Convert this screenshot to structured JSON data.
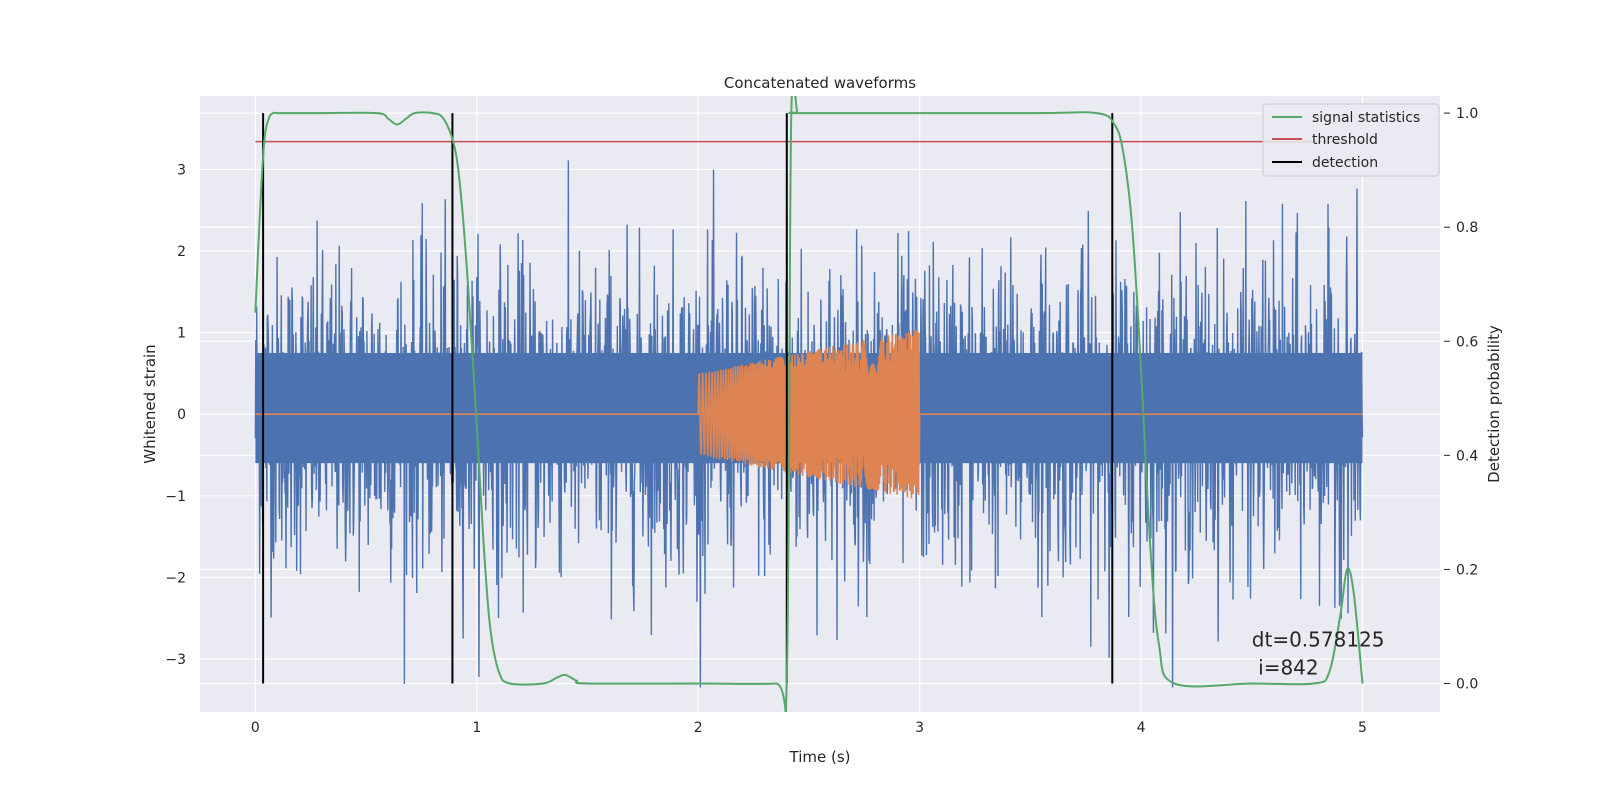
{
  "chart_data": {
    "type": "line",
    "title": "Concatenated waveforms",
    "xlabel": "Time (s)",
    "ylabel": "Whitened strain",
    "y2label": "Detection probability",
    "xlim": [
      -0.25,
      5.35
    ],
    "ylim": [
      -3.65,
      3.9
    ],
    "y2lim": [
      -0.05,
      1.03
    ],
    "xticks": [
      0,
      1,
      2,
      3,
      4,
      5
    ],
    "xtick_labels": [
      "0",
      "1",
      "2",
      "3",
      "4",
      "5"
    ],
    "yticks": [
      -3,
      -2,
      -1,
      0,
      1,
      2,
      3
    ],
    "ytick_labels": [
      "−3",
      "−2",
      "−1",
      "0",
      "1",
      "2",
      "3"
    ],
    "y2ticks": [
      0.0,
      0.2,
      0.4,
      0.6,
      0.8,
      1.0
    ],
    "y2tick_labels": [
      "0.0",
      "0.2",
      "0.4",
      "0.6",
      "0.8",
      "1.0"
    ],
    "grid": true,
    "legend_position": "top-right",
    "series": [
      {
        "kind": "noise",
        "axis": "left",
        "color": "#4c72b0",
        "x_range": [
          0,
          5
        ],
        "typical_min": -1.6,
        "typical_max": 1.6,
        "peak_max": 3.55,
        "peak_min": -3.35
      },
      {
        "kind": "chirp",
        "axis": "left",
        "color": "#dd8452",
        "baseline": 0,
        "x_range": [
          0,
          5
        ],
        "chirp_start": 2.0,
        "chirp_end": 3.0,
        "amplitude_start": 0.5,
        "amplitude_end": 1.05
      },
      {
        "name": "signal statistics",
        "axis": "right",
        "color": "#55a868",
        "x": [
          0,
          0.02,
          0.04,
          0.06,
          0.08,
          0.1,
          0.15,
          0.3,
          0.55,
          0.6,
          0.64,
          0.68,
          0.72,
          0.8,
          0.85,
          0.9,
          0.93,
          0.96,
          1.0,
          1.03,
          1.06,
          1.1,
          1.15,
          1.3,
          1.36,
          1.4,
          1.45,
          1.5,
          2.0,
          2.35,
          2.4,
          2.42,
          2.45,
          2.5,
          3.5,
          3.8,
          3.88,
          3.92,
          3.96,
          4.0,
          4.04,
          4.08,
          4.15,
          4.5,
          4.78,
          4.85,
          4.9,
          4.93,
          4.96,
          5.0
        ],
        "y": [
          0.65,
          0.82,
          0.95,
          0.99,
          1.0,
          1.0,
          1.0,
          1.0,
          1.0,
          0.99,
          0.98,
          0.99,
          1.0,
          1.0,
          0.99,
          0.94,
          0.85,
          0.7,
          0.45,
          0.25,
          0.1,
          0.02,
          0.0,
          0.0,
          0.01,
          0.015,
          0.005,
          0.0,
          0.0,
          0.0,
          0.01,
          0.99,
          1.0,
          1.0,
          1.0,
          1.0,
          0.98,
          0.93,
          0.8,
          0.55,
          0.25,
          0.07,
          0.0,
          0.0,
          0.0,
          0.02,
          0.12,
          0.2,
          0.16,
          0.0
        ]
      },
      {
        "name": "threshold",
        "axis": "right",
        "color": "#c44e52",
        "x": [
          0,
          5
        ],
        "y": [
          0.95,
          0.95
        ]
      },
      {
        "name": "detection",
        "axis": "right",
        "color": "#000000",
        "x": [
          0.035,
          0.89,
          2.4,
          3.87
        ],
        "y_range": [
          0.0,
          1.0
        ]
      }
    ],
    "annotation": {
      "text_line1": "dt=0.578125",
      "text_line2": " i=842",
      "x": 4.5,
      "y": -2.6
    }
  }
}
